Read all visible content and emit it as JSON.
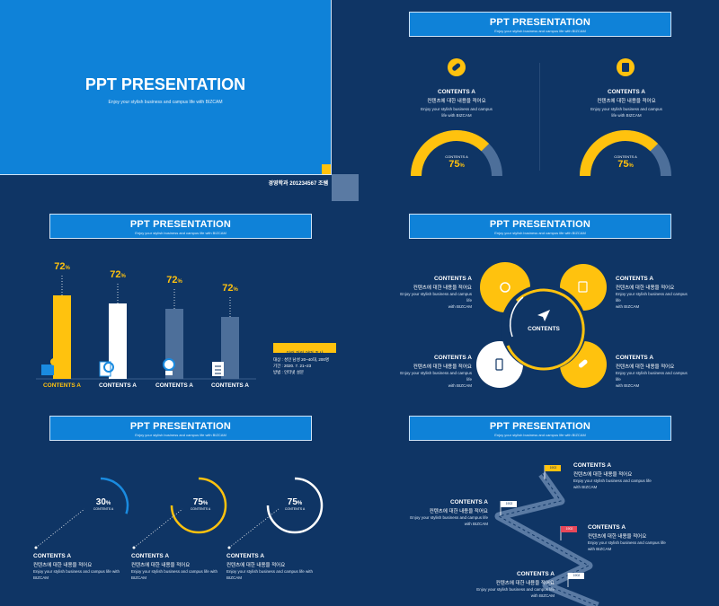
{
  "cover": {
    "title": "PPT PRESENTATION",
    "subtitle": "Enjoy your stylish business and campus life with BIZCAM",
    "author": "경영학과 201234567 조쌤"
  },
  "banner": {
    "title": "PPT PRESENTATION",
    "subtitle": "Enjoy your stylish business and campus life with BIZCAM"
  },
  "slide2": {
    "items": [
      {
        "label": "CONTENTS A",
        "ko": "컨텐츠에 대한 내용을 적어요",
        "desc1": "Enjoy your stylish business and campus",
        "desc2": "life with BIZCAM",
        "gauge_label": "CONTENTS A",
        "value": "75",
        "unit": "%",
        "fraction": 0.75
      },
      {
        "label": "CONTENTS A",
        "ko": "컨텐츠에 대한 내용을 적어요",
        "desc1": "Enjoy your stylish business and campus",
        "desc2": "life with BIZCAM",
        "gauge_label": "CONTENTS A",
        "value": "75",
        "unit": "%",
        "fraction": 0.75
      }
    ]
  },
  "slide3": {
    "bars": [
      {
        "value": "72",
        "unit": "%",
        "label": "CONTENTS A"
      },
      {
        "value": "72",
        "unit": "%",
        "label": "CONTENTS A"
      },
      {
        "value": "72",
        "unit": "%",
        "label": "CONTENTS A"
      },
      {
        "value": "72",
        "unit": "%",
        "label": "CONTENTS A"
      }
    ],
    "info_title": "이런 저런 어떤 조사",
    "info_lines": [
      "대상 : 성인 남성 20~40대, 200명",
      "기간 : 2020. 7. 21~23",
      "방법 : 인터넷 설문"
    ]
  },
  "slide4": {
    "center": "CONTENTS",
    "items": [
      {
        "label": "CONTENTS A",
        "ko": "컨텐츠에 대한 내용을 적어요",
        "desc1": "Enjoy your stylish business and campus life",
        "desc2": "with BIZCAM"
      },
      {
        "label": "CONTENTS A",
        "ko": "컨텐츠에 대한 내용을 적어요",
        "desc1": "Enjoy your stylish business and campus life",
        "desc2": "with BIZCAM"
      },
      {
        "label": "CONTENTS A",
        "ko": "컨텐츠에 대한 내용을 적어요",
        "desc1": "Enjoy your stylish business and campus life",
        "desc2": "with BIZCAM"
      },
      {
        "label": "CONTENTS A",
        "ko": "컨텐츠에 대한 내용을 적어요",
        "desc1": "Enjoy your stylish business and campus life",
        "desc2": "with BIZCAM"
      }
    ]
  },
  "slide5": {
    "items": [
      {
        "value": "30",
        "unit": "%",
        "small": "CONTENTS A",
        "fraction": 0.3,
        "color": "#1a8be0",
        "label": "CONTENTS A",
        "ko": "컨텐츠에 대한 내용을 적어요",
        "desc": "Enjoy your stylish business and campus life with BIZCAM"
      },
      {
        "value": "75",
        "unit": "%",
        "small": "CONTENTS A",
        "fraction": 0.75,
        "color": "#ffc20e",
        "label": "CONTENTS A",
        "ko": "컨텐츠에 대한 내용을 적어요",
        "desc": "Enjoy your stylish business and campus life with BIZCAM"
      },
      {
        "value": "75",
        "unit": "%",
        "small": "CONTENTS A",
        "fraction": 0.75,
        "color": "#ffffff",
        "label": "CONTENTS A",
        "ko": "컨텐츠에 대한 내용을 적어요",
        "desc": "Enjoy your stylish business and campus life with BIZCAM"
      }
    ]
  },
  "slide6": {
    "items": [
      {
        "flag": "1902",
        "label": "CONTENTS A",
        "ko": "컨텐츠에 대한 내용을 적어요",
        "desc1": "Enjoy your stylish business and campus life",
        "desc2": "with BIZCAM"
      },
      {
        "flag": "1902",
        "label": "CONTENTS A",
        "ko": "컨텐츠에 대한 내용을 적어요",
        "desc1": "Enjoy your stylish business and campus life",
        "desc2": "with BIZCAM"
      },
      {
        "flag": "1902",
        "label": "CONTENTS A",
        "ko": "컨텐츠에 대한 내용을 적어요",
        "desc1": "Enjoy your stylish business and campus life",
        "desc2": "with BIZCAM"
      },
      {
        "flag": "1902",
        "label": "CONTENTS A",
        "ko": "컨텐츠에 대한 내용을 적어요",
        "desc1": "Enjoy your stylish business and campus life",
        "desc2": "with BIZCAM"
      }
    ]
  }
}
